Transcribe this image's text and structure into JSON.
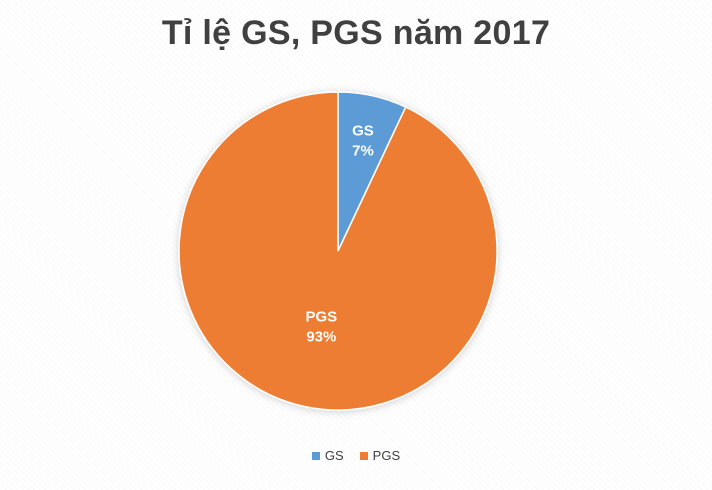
{
  "chart_data": {
    "type": "pie",
    "title": "Tỉ lệ GS, PGS năm 2017",
    "categories": [
      "GS",
      "PGS"
    ],
    "values": [
      7,
      93
    ],
    "value_labels": [
      "7%",
      "93%"
    ],
    "colors": [
      "#5B9BD5",
      "#ED7D31"
    ],
    "legend_position": "bottom",
    "grid": false
  }
}
